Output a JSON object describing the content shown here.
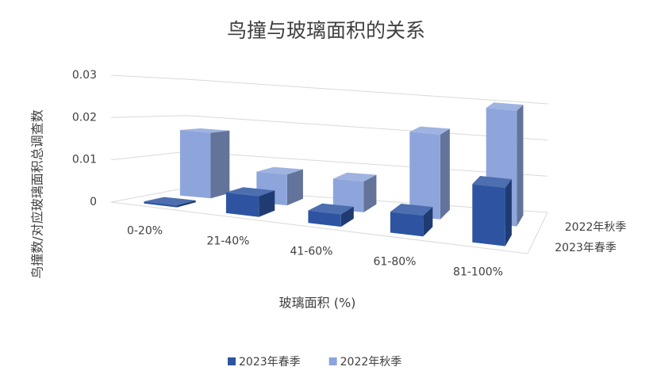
{
  "chart_data": {
    "type": "bar3d",
    "title": "鸟撞与玻璃面积的关系",
    "x_label": "玻璃面积 (%)",
    "y_label": "鸟撞数/对应玻璃面积总调查数",
    "categories": [
      "0-20%",
      "21-40%",
      "41-60%",
      "61-80%",
      "81-100%"
    ],
    "series": [
      {
        "name": "2023年春季",
        "color": "#2e54a1",
        "values": [
          0.0005,
          0.005,
          0.003,
          0.005,
          0.014
        ]
      },
      {
        "name": "2022年秋季",
        "color": "#8ea5dc",
        "values": [
          0.017,
          0.008,
          0.008,
          0.022,
          0.03
        ]
      }
    ],
    "ylim": [
      0,
      0.03
    ],
    "yticks": [
      0,
      0.01,
      0.02,
      0.03
    ],
    "grid": true,
    "legend": "bottom"
  }
}
